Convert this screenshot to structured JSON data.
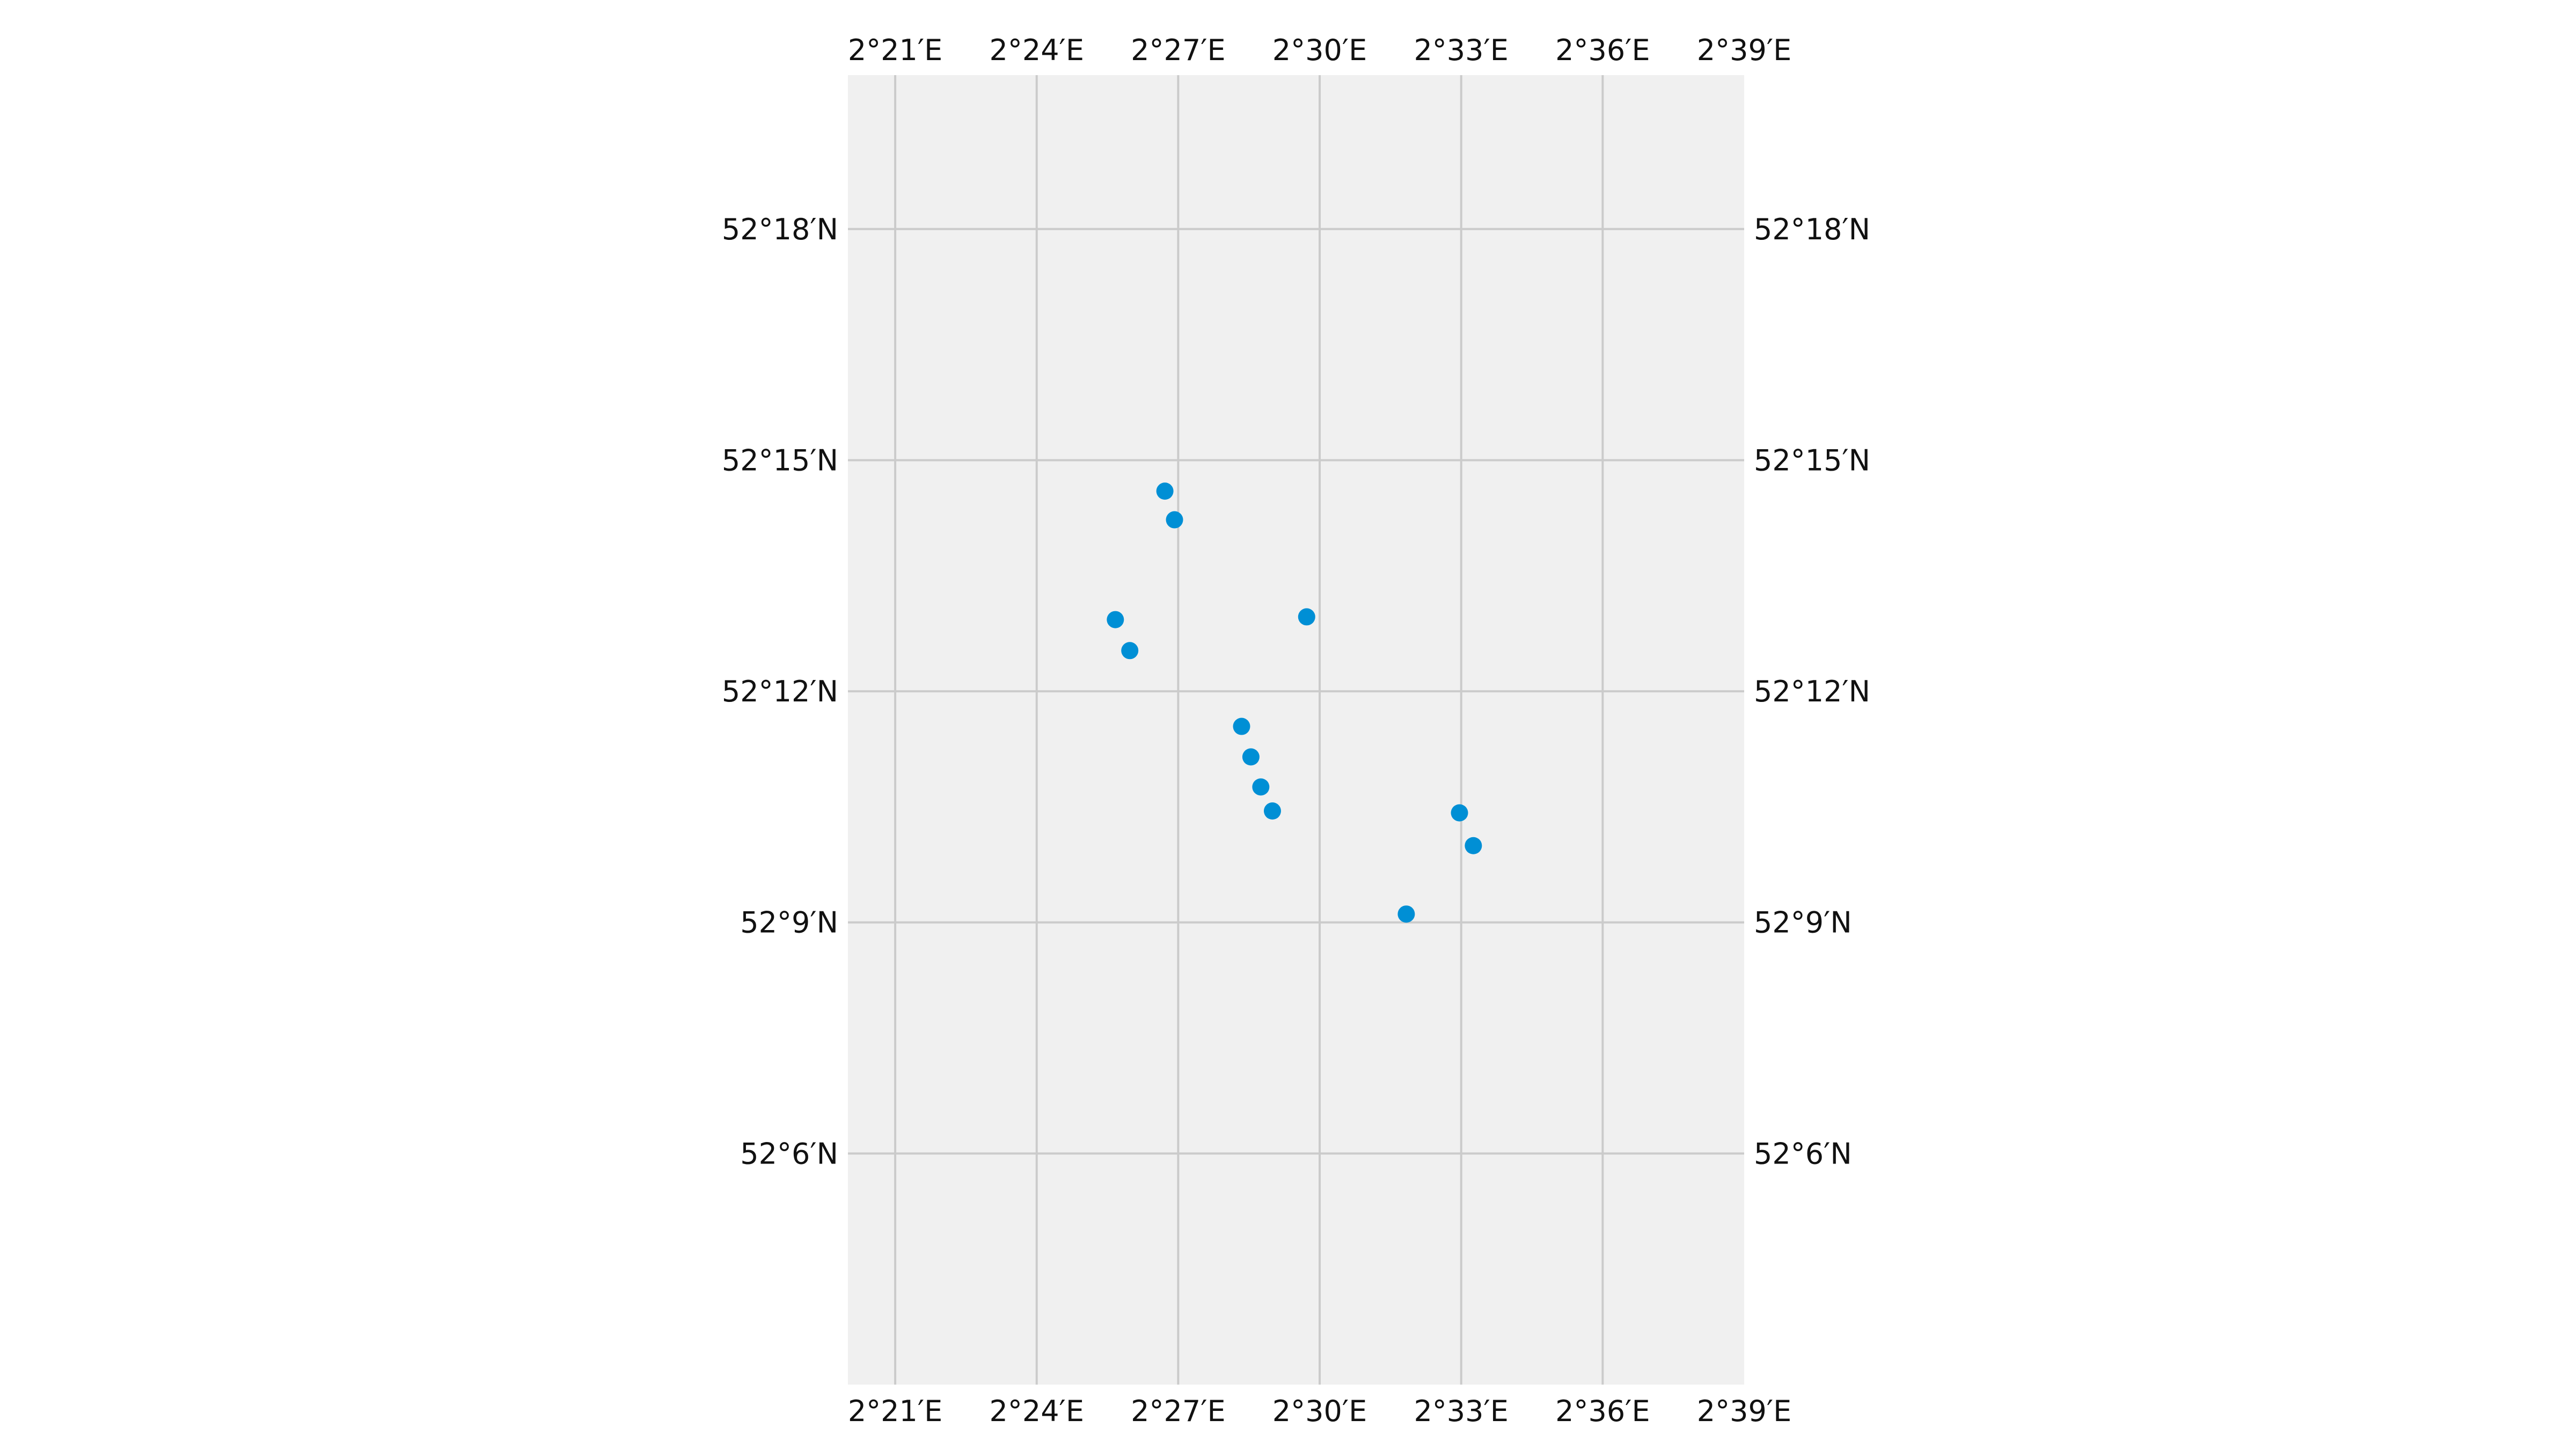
{
  "chart_data": {
    "type": "scatter",
    "projection": "PlateCarree",
    "xlim": [
      2.3333,
      2.65
    ],
    "ylim": [
      52.05,
      52.3333
    ],
    "grid": true,
    "background_color": "#f0f0f0",
    "grid_color": "#cbcbcb",
    "point_color": "#008fd5",
    "x_ticks": [
      {
        "value": 2.35,
        "label": "2°21′E"
      },
      {
        "value": 2.4,
        "label": "2°24′E"
      },
      {
        "value": 2.45,
        "label": "2°27′E"
      },
      {
        "value": 2.5,
        "label": "2°30′E"
      },
      {
        "value": 2.55,
        "label": "2°33′E"
      },
      {
        "value": 2.6,
        "label": "2°36′E"
      },
      {
        "value": 2.65,
        "label": "2°39′E"
      }
    ],
    "y_ticks": [
      {
        "value": 52.1,
        "label": "52°6′N"
      },
      {
        "value": 52.15,
        "label": "52°9′N"
      },
      {
        "value": 52.2,
        "label": "52°12′N"
      },
      {
        "value": 52.25,
        "label": "52°15′N"
      },
      {
        "value": 52.3,
        "label": "52°18′N"
      }
    ],
    "points": [
      {
        "lon": 2.4453,
        "lat": 52.2433
      },
      {
        "lon": 2.4487,
        "lat": 52.2371
      },
      {
        "lon": 2.4278,
        "lat": 52.2155
      },
      {
        "lon": 2.4329,
        "lat": 52.2088
      },
      {
        "lon": 2.4954,
        "lat": 52.2161
      },
      {
        "lon": 2.4724,
        "lat": 52.1924
      },
      {
        "lon": 2.4757,
        "lat": 52.1858
      },
      {
        "lon": 2.4792,
        "lat": 52.1793
      },
      {
        "lon": 2.4833,
        "lat": 52.1741
      },
      {
        "lon": 2.5494,
        "lat": 52.1737
      },
      {
        "lon": 2.5543,
        "lat": 52.1666
      },
      {
        "lon": 2.5306,
        "lat": 52.1518
      }
    ]
  }
}
